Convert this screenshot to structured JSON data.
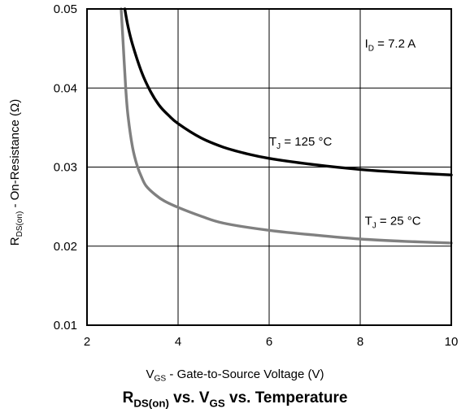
{
  "chart_data": {
    "type": "line",
    "title": {
      "main": "R",
      "sub1": "DS(on)",
      "mid": " vs. V",
      "sub2": "GS",
      "end": " vs. Temperature"
    },
    "xlabel": {
      "main": "V",
      "sub": "GS",
      "rest": " - Gate-to-Source Voltage (V)"
    },
    "ylabel": {
      "main": "R",
      "sub": "DS(on)",
      "rest": " - On-Resistance (Ω)"
    },
    "xlim": [
      2,
      10
    ],
    "ylim": [
      0.01,
      0.05
    ],
    "xticks": [
      2,
      4,
      6,
      8,
      10
    ],
    "xtick_labels": [
      "2",
      "4",
      "6",
      "8",
      "10"
    ],
    "yticks": [
      0.01,
      0.02,
      0.03,
      0.04,
      0.05
    ],
    "ytick_labels": [
      "0.01",
      "0.02",
      "0.03",
      "0.04",
      "0.05"
    ],
    "grid": true,
    "annotations": [
      {
        "id": "id-condition",
        "main": "I",
        "sub": "D",
        "rest": " = 7.2 A",
        "x": 8.1,
        "y": 0.0451
      },
      {
        "id": "tj-125-label",
        "main": "T",
        "sub": "J",
        "rest": " = 125 °C",
        "x": 6.0,
        "y": 0.0327
      },
      {
        "id": "tj-25-label",
        "main": "T",
        "sub": "J",
        "rest": " = 25 °C",
        "x": 8.1,
        "y": 0.0227
      }
    ],
    "series": [
      {
        "name": "TJ = 125 °C",
        "color": "#000000",
        "x": [
          2.83,
          2.9,
          3.0,
          3.2,
          3.4,
          3.6,
          3.8,
          4.0,
          4.5,
          5.0,
          5.5,
          6.0,
          7.0,
          8.0,
          9.0,
          10.0
        ],
        "y": [
          0.05,
          0.0478,
          0.0455,
          0.042,
          0.0395,
          0.0377,
          0.0365,
          0.0355,
          0.0337,
          0.0325,
          0.0317,
          0.0311,
          0.0303,
          0.0297,
          0.0293,
          0.029
        ]
      },
      {
        "name": "TJ = 25 °C",
        "color": "#808080",
        "x": [
          2.75,
          2.8,
          2.85,
          2.9,
          3.0,
          3.1,
          3.2,
          3.3,
          3.5,
          3.7,
          4.0,
          4.5,
          5.0,
          6.0,
          7.0,
          8.0,
          9.0,
          10.0
        ],
        "y": [
          0.05,
          0.045,
          0.04,
          0.0365,
          0.0325,
          0.0302,
          0.0287,
          0.0276,
          0.0265,
          0.0257,
          0.0249,
          0.0238,
          0.0229,
          0.022,
          0.0214,
          0.0209,
          0.0206,
          0.0204
        ]
      }
    ]
  }
}
